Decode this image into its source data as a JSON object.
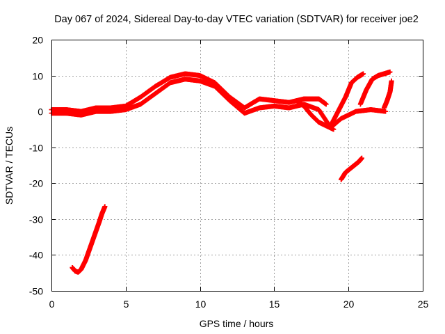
{
  "chart_data": {
    "type": "scatter",
    "title": "Day 067 of 2024, Sidereal Day-to-day VTEC variation (SDTVAR) for receiver joe2",
    "xlabel": "GPS time / hours",
    "ylabel": "SDTVAR / TECUs",
    "xlim": [
      0,
      25
    ],
    "ylim": [
      -50,
      20
    ],
    "x_ticks": [
      0,
      5,
      10,
      15,
      20,
      25
    ],
    "y_ticks": [
      -50,
      -40,
      -30,
      -20,
      -10,
      0,
      10,
      20
    ],
    "grid": true,
    "marker": "plus",
    "color": "#ff0000",
    "series": [
      {
        "name": "main-band-upper",
        "x": [
          0.0,
          1.0,
          2.0,
          3.0,
          4.0,
          5.0,
          6.0,
          7.0,
          8.0,
          9.0,
          10.0,
          11.0,
          12.0,
          13.0,
          14.0,
          15.0,
          16.0,
          17.0,
          18.0,
          18.5
        ],
        "y": [
          0.5,
          0.5,
          0.0,
          1.0,
          1.0,
          1.5,
          4.0,
          7.0,
          9.5,
          10.5,
          10.0,
          8.0,
          4.0,
          1.0,
          3.5,
          3.0,
          2.5,
          3.5,
          3.5,
          2.0
        ]
      },
      {
        "name": "main-band-lower",
        "x": [
          0.0,
          1.0,
          2.0,
          3.0,
          4.0,
          5.0,
          6.0,
          7.0,
          8.0,
          9.0,
          10.0,
          11.0,
          12.0,
          13.0,
          14.0,
          15.0,
          16.0,
          17.0,
          18.0,
          18.8,
          19.5,
          20.5,
          21.5,
          22.5
        ],
        "y": [
          -0.5,
          -0.5,
          -1.0,
          0.0,
          0.0,
          0.5,
          2.0,
          5.0,
          8.0,
          9.0,
          8.5,
          7.0,
          3.0,
          -0.5,
          1.0,
          1.5,
          1.0,
          2.0,
          0.5,
          -4.5,
          -2.0,
          0.0,
          0.5,
          0.0
        ]
      },
      {
        "name": "dip-branch",
        "x": [
          16.5,
          17.0,
          17.5,
          18.0,
          18.5,
          19.0
        ],
        "y": [
          3.0,
          1.5,
          -1.0,
          -3.0,
          -4.0,
          -5.0
        ]
      },
      {
        "name": "rising-arc-1",
        "x": [
          18.8,
          19.3,
          19.8,
          20.2,
          20.6,
          21.0
        ],
        "y": [
          -4.0,
          0.0,
          4.0,
          8.0,
          9.5,
          10.5
        ]
      },
      {
        "name": "rising-arc-2",
        "x": [
          20.8,
          21.2,
          21.6,
          22.0,
          22.4,
          22.8
        ],
        "y": [
          2.0,
          6.0,
          9.0,
          10.0,
          10.5,
          11.0
        ]
      },
      {
        "name": "late-rise",
        "x": [
          22.4,
          22.6,
          22.8,
          22.9
        ],
        "y": [
          1.0,
          3.0,
          5.5,
          8.5
        ]
      },
      {
        "name": "isolated-segment",
        "x": [
          19.5,
          19.8,
          20.1,
          20.4,
          20.7,
          20.9
        ],
        "y": [
          -19.0,
          -17.0,
          -16.0,
          -15.0,
          -14.0,
          -13.0
        ]
      },
      {
        "name": "early-curve",
        "x": [
          1.4,
          1.6,
          1.8,
          2.0,
          2.3,
          2.6,
          2.9,
          3.2,
          3.4,
          3.6
        ],
        "y": [
          -43.5,
          -44.5,
          -44.8,
          -44.0,
          -41.5,
          -38.0,
          -34.5,
          -31.0,
          -28.5,
          -26.5
        ]
      }
    ]
  }
}
